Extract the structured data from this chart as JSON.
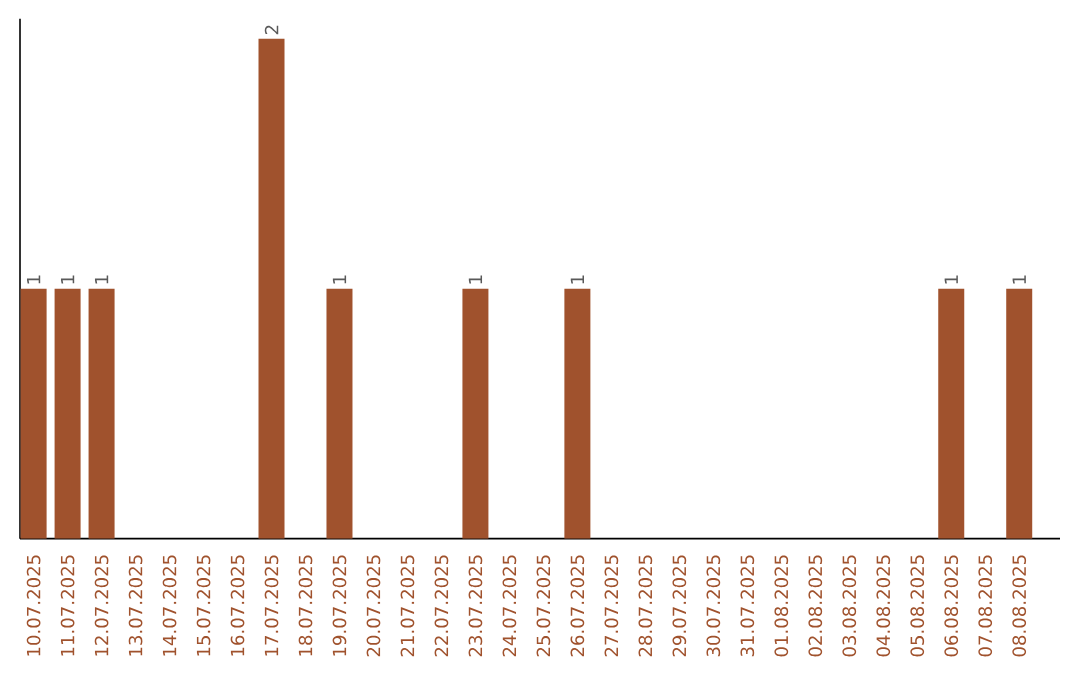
{
  "chart_data": {
    "type": "bar",
    "categories": [
      "10.07.2025",
      "11.07.2025",
      "12.07.2025",
      "13.07.2025",
      "14.07.2025",
      "15.07.2025",
      "16.07.2025",
      "17.07.2025",
      "18.07.2025",
      "19.07.2025",
      "20.07.2025",
      "21.07.2025",
      "22.07.2025",
      "23.07.2025",
      "24.07.2025",
      "25.07.2025",
      "26.07.2025",
      "27.07.2025",
      "28.07.2025",
      "29.07.2025",
      "30.07.2025",
      "31.07.2025",
      "01.08.2025",
      "02.08.2025",
      "03.08.2025",
      "04.08.2025",
      "05.08.2025",
      "06.08.2025",
      "07.08.2025",
      "08.08.2025"
    ],
    "values": [
      1,
      1,
      1,
      0,
      0,
      0,
      0,
      2,
      0,
      1,
      0,
      0,
      0,
      1,
      0,
      0,
      1,
      0,
      0,
      0,
      0,
      0,
      0,
      0,
      0,
      0,
      0,
      1,
      0,
      1
    ],
    "value_labels": [
      "1",
      "1",
      "1",
      null,
      null,
      null,
      null,
      "2",
      null,
      "1",
      null,
      null,
      null,
      "1",
      null,
      null,
      "1",
      null,
      null,
      null,
      null,
      null,
      null,
      null,
      null,
      null,
      null,
      "1",
      null,
      "1"
    ],
    "color": "#a0522d",
    "ylim": [
      0,
      2.08
    ]
  }
}
